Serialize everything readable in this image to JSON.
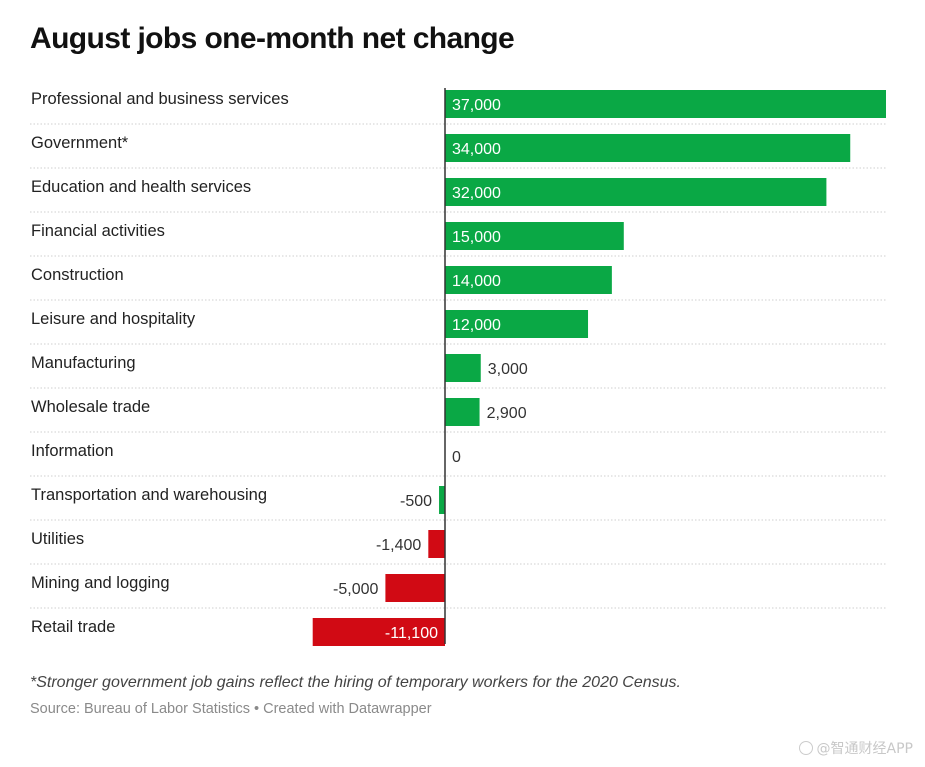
{
  "chart_data": {
    "type": "bar",
    "orientation": "horizontal",
    "title": "August jobs one-month net change",
    "categories": [
      "Professional and business services",
      "Government*",
      "Education and health services",
      "Financial activities",
      "Construction",
      "Leisure and hospitality",
      "Manufacturing",
      "Wholesale trade",
      "Information",
      "Transportation and warehousing",
      "Utilities",
      "Mining and logging",
      "Retail trade"
    ],
    "values": [
      37000,
      34000,
      32000,
      15000,
      14000,
      12000,
      3000,
      2900,
      0,
      -500,
      -1400,
      -5000,
      -11100
    ],
    "value_labels": [
      "37,000",
      "34,000",
      "32,000",
      "15,000",
      "14,000",
      "12,000",
      "3,000",
      "2,900",
      "0",
      "-500",
      "-1,400",
      "-5,000",
      "-11,100"
    ],
    "bar_colors": [
      "#0aa845",
      "#0aa845",
      "#0aa845",
      "#0aa845",
      "#0aa845",
      "#0aa845",
      "#0aa845",
      "#0aa845",
      "#0aa845",
      "#0aa845",
      "#d10a14",
      "#d10a14",
      "#d10a14"
    ],
    "xlim": [
      -11100,
      37000
    ],
    "grid": false,
    "legend": "none"
  },
  "footnote": "*Stronger government job gains reflect the hiring of temporary workers for the 2020 Census.",
  "source": {
    "text": "Source: Bureau of Labor Statistics",
    "separator": "•",
    "credit": "Created with Datawrapper"
  },
  "watermark": {
    "text": "@智通财经APP"
  },
  "colors": {
    "positive": "#0aa845",
    "negative": "#d10a14",
    "axis": "#333333",
    "row_divider": "#cfcfcf"
  }
}
